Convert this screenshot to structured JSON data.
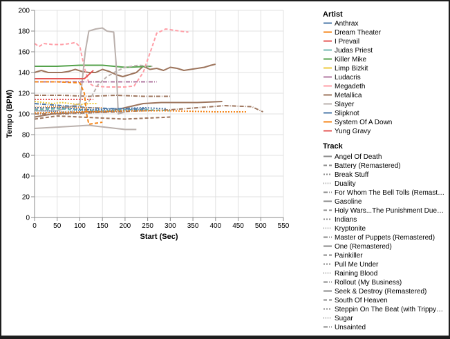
{
  "chart_data": {
    "type": "line",
    "xlabel": "Start (Sec)",
    "ylabel": "Tempo (BPM)",
    "xlim": [
      0,
      550
    ],
    "ylim": [
      0,
      200
    ],
    "x_ticks": [
      0,
      50,
      100,
      150,
      200,
      250,
      300,
      350,
      400,
      450,
      500,
      550
    ],
    "y_ticks": [
      0,
      20,
      40,
      60,
      80,
      100,
      120,
      140,
      160,
      180,
      200
    ],
    "grid": true,
    "legend_placement": "right",
    "legend_artist": {
      "title": "Artist",
      "entries": [
        {
          "name": "Anthrax",
          "color": "#4c78a8"
        },
        {
          "name": "Dream Theater",
          "color": "#f58518"
        },
        {
          "name": "I Prevail",
          "color": "#e45756"
        },
        {
          "name": "Judas Priest",
          "color": "#72b7b2"
        },
        {
          "name": "Killer Mike",
          "color": "#54a24b"
        },
        {
          "name": "Limp Bizkit",
          "color": "#eeca3b"
        },
        {
          "name": "Ludacris",
          "color": "#b279a2"
        },
        {
          "name": "Megadeth",
          "color": "#ff9da6"
        },
        {
          "name": "Metallica",
          "color": "#9d755d"
        },
        {
          "name": "Slayer",
          "color": "#bab0ac"
        },
        {
          "name": "Slipknot",
          "color": "#4c78a8"
        },
        {
          "name": "System Of A Down",
          "color": "#f58518"
        },
        {
          "name": "Yung Gravy",
          "color": "#e45756"
        }
      ]
    },
    "legend_track": {
      "title": "Track",
      "entries": [
        {
          "name": "Angel Of Death",
          "dash": "solid"
        },
        {
          "name": "Battery (Remastered)",
          "dash": "dashed"
        },
        {
          "name": "Break Stuff",
          "dash": "dotted"
        },
        {
          "name": "Duality",
          "dash": "finedot"
        },
        {
          "name": "For Whom The Bell Tolls (Remast…",
          "dash": "dashdot"
        },
        {
          "name": "Gasoline",
          "dash": "solid"
        },
        {
          "name": "Holy Wars...The Punishment Due…",
          "dash": "dashed"
        },
        {
          "name": "Indians",
          "dash": "dotted"
        },
        {
          "name": "Kryptonite",
          "dash": "finedot"
        },
        {
          "name": "Master of Puppets (Remastered)",
          "dash": "dashdot"
        },
        {
          "name": "One (Remastered)",
          "dash": "solid"
        },
        {
          "name": "Painkiller",
          "dash": "dashed"
        },
        {
          "name": "Pull Me Under",
          "dash": "dotted"
        },
        {
          "name": "Raining Blood",
          "dash": "finedot"
        },
        {
          "name": "Rollout (My Business)",
          "dash": "dashdot"
        },
        {
          "name": "Seek & Destroy (Remastered)",
          "dash": "solid"
        },
        {
          "name": "South Of Heaven",
          "dash": "dashed"
        },
        {
          "name": "Steppin On The Beat (with Trippy…",
          "dash": "dotted"
        },
        {
          "name": "Sugar",
          "dash": "finedot"
        },
        {
          "name": "Unsainted",
          "dash": "dashdot"
        }
      ]
    },
    "series": [
      {
        "artist": "Metallica",
        "track": "One (Remastered)",
        "color": "#9d755d",
        "dash": "solid",
        "x": [
          0,
          15,
          30,
          45,
          60,
          75,
          90,
          105,
          120,
          135,
          150,
          165,
          180,
          195,
          210,
          225,
          240,
          255,
          270,
          285,
          300,
          315,
          330,
          345,
          360,
          375,
          390,
          400
        ],
        "y": [
          140,
          142,
          140,
          140,
          140,
          141,
          143,
          141,
          140,
          140,
          143,
          141,
          138,
          136,
          138,
          140,
          146,
          143,
          144,
          142,
          145,
          144,
          142,
          143,
          144,
          145,
          147,
          148
        ]
      },
      {
        "artist": "Killer Mike",
        "track": "Gasoline",
        "color": "#54a24b",
        "dash": "solid",
        "x": [
          0,
          50,
          100,
          150,
          200,
          260
        ],
        "y": [
          146,
          146,
          147,
          147,
          145,
          146
        ]
      },
      {
        "artist": "Metallica",
        "track": "Master of Puppets (Remastered)",
        "color": "#9d755d",
        "dash": "dashdot",
        "x": [
          0,
          60,
          120,
          180,
          240,
          300,
          360,
          420,
          480,
          505
        ],
        "y": [
          100,
          100,
          101,
          102,
          103,
          104,
          106,
          108,
          107,
          102
        ]
      },
      {
        "artist": "Metallica",
        "track": "Seek & Destroy (Remastered)",
        "color": "#9d755d",
        "dash": "solid",
        "x": [
          0,
          40,
          80,
          120,
          160,
          200,
          240,
          280,
          320,
          360,
          415
        ],
        "y": [
          97,
          100,
          101,
          102,
          102,
          106,
          110,
          111,
          111,
          111,
          112
        ]
      },
      {
        "artist": "Metallica",
        "track": "Battery (Remastered)",
        "color": "#9d755d",
        "dash": "dashed",
        "x": [
          0,
          50,
          100,
          150,
          200,
          250,
          300
        ],
        "y": [
          95,
          98,
          97,
          96,
          95,
          96,
          97
        ]
      },
      {
        "artist": "Metallica",
        "track": "For Whom The Bell Tolls (Remastered)",
        "color": "#9d755d",
        "dash": "dashdot",
        "x": [
          0,
          60,
          120,
          180,
          240,
          300
        ],
        "y": [
          118,
          118,
          117,
          118,
          117,
          117
        ]
      },
      {
        "artist": "Megadeth",
        "track": "Holy Wars...The Punishment Due",
        "color": "#ff9da6",
        "dash": "dashed",
        "x": [
          0,
          10,
          20,
          40,
          60,
          80,
          90,
          100,
          110,
          120,
          130,
          160,
          200,
          220,
          240,
          260,
          270,
          290,
          320,
          340
        ],
        "y": [
          168,
          165,
          168,
          167,
          167,
          168,
          169,
          165,
          145,
          130,
          127,
          126,
          126,
          127,
          140,
          165,
          178,
          182,
          180,
          179
        ]
      },
      {
        "artist": "Slayer",
        "track": "Angel Of Death",
        "color": "#bab0ac",
        "dash": "solid",
        "x": [
          0,
          50,
          100,
          112,
          120,
          135,
          150,
          160,
          175,
          180,
          185,
          200
        ],
        "y": [
          103,
          103,
          110,
          160,
          180,
          182,
          183,
          180,
          179,
          150,
          100,
          102
        ]
      },
      {
        "artist": "Slayer",
        "track": "Raining Blood",
        "color": "#bab0ac",
        "dash": "finedot",
        "x": [
          0,
          20,
          40,
          60,
          80,
          100,
          120,
          140,
          160
        ],
        "y": [
          100,
          101,
          102,
          102,
          101,
          100,
          101,
          102,
          103
        ]
      },
      {
        "artist": "Slayer",
        "track": "South Of Heaven",
        "color": "#bab0ac",
        "dash": "dashed",
        "x": [
          0,
          40,
          80,
          100,
          120,
          140,
          160,
          180,
          200,
          230,
          260
        ],
        "y": [
          105,
          106,
          107,
          108,
          112,
          128,
          136,
          141,
          145,
          147,
          146
        ]
      },
      {
        "artist": "Judas Priest",
        "track": "Painkiller",
        "color": "#72b7b2",
        "dash": "dashed",
        "x": [
          0,
          50,
          100,
          150,
          200,
          250,
          300
        ],
        "y": [
          104,
          105,
          104,
          103,
          104,
          104,
          103
        ]
      },
      {
        "artist": "Anthrax",
        "track": "Indians",
        "color": "#4c78a8",
        "dash": "dotted",
        "x": [
          0,
          60,
          120,
          180,
          240,
          290
        ],
        "y": [
          106,
          106,
          104,
          105,
          106,
          105
        ]
      },
      {
        "artist": "Slipknot",
        "track": "Duality",
        "color": "#4c78a8",
        "dash": "finedot",
        "x": [
          0,
          30,
          60,
          90,
          120,
          150,
          180,
          210,
          240
        ],
        "y": [
          103,
          103,
          102,
          103,
          104,
          103,
          103,
          104,
          104
        ]
      },
      {
        "artist": "Slipknot",
        "track": "Unsainted",
        "color": "#4c78a8",
        "dash": "dashdot",
        "x": [
          0,
          60,
          120,
          180,
          250
        ],
        "y": [
          110,
          108,
          106,
          105,
          105
        ]
      },
      {
        "artist": "Dream Theater",
        "track": "Pull Me Under",
        "color": "#f58518",
        "dash": "dotted",
        "x": [
          0,
          100,
          200,
          300,
          400,
          470
        ],
        "y": [
          101,
          102,
          103,
          103,
          102,
          102
        ]
      },
      {
        "artist": "System Of A Down",
        "track": "Sugar",
        "color": "#f58518",
        "dash": "finedot",
        "x": [
          0,
          50,
          100,
          150
        ],
        "y": [
          107,
          107,
          106,
          106
        ]
      },
      {
        "artist": "Limp Bizkit",
        "track": "Break Stuff",
        "color": "#eeca3b",
        "dash": "dotted",
        "x": [
          0,
          20,
          40,
          60,
          80,
          100,
          120,
          140
        ],
        "y": [
          112,
          111,
          110,
          111,
          110,
          109,
          110,
          110
        ]
      },
      {
        "artist": "Ludacris",
        "track": "Rollout (My Business)",
        "color": "#b279a2",
        "dash": "dashdot",
        "x": [
          0,
          60,
          120,
          180,
          240,
          270
        ],
        "y": [
          131,
          131,
          131,
          131,
          131,
          131
        ]
      },
      {
        "artist": "Yung Gravy",
        "track": "Steppin On The Beat",
        "color": "#e45756",
        "dash": "dotted",
        "x": [
          0,
          40,
          80,
          130
        ],
        "y": [
          114,
          114,
          114,
          114
        ]
      },
      {
        "artist": "I Prevail",
        "track": "Kryptonite",
        "color": "#e45756",
        "dash": "solid",
        "x": [
          0,
          30,
          60,
          90,
          110,
          120,
          130
        ],
        "y": [
          134,
          134,
          134,
          134,
          134,
          138,
          142
        ]
      },
      {
        "artist": "Dream Theater",
        "track": "Pull Me Under",
        "color": "#f58518",
        "dash": "dashed",
        "x": [
          0,
          50,
          100,
          110,
          115,
          120,
          135,
          150
        ],
        "y": [
          131,
          131,
          130,
          120,
          100,
          90,
          91,
          92
        ]
      },
      {
        "artist": "Slayer",
        "track": "Angel Of Death",
        "color": "#bab0ac",
        "dash": "solid",
        "x": [
          0,
          40,
          80,
          120,
          160,
          200,
          225
        ],
        "y": [
          86,
          87,
          88,
          89,
          87,
          85,
          85
        ]
      }
    ]
  }
}
